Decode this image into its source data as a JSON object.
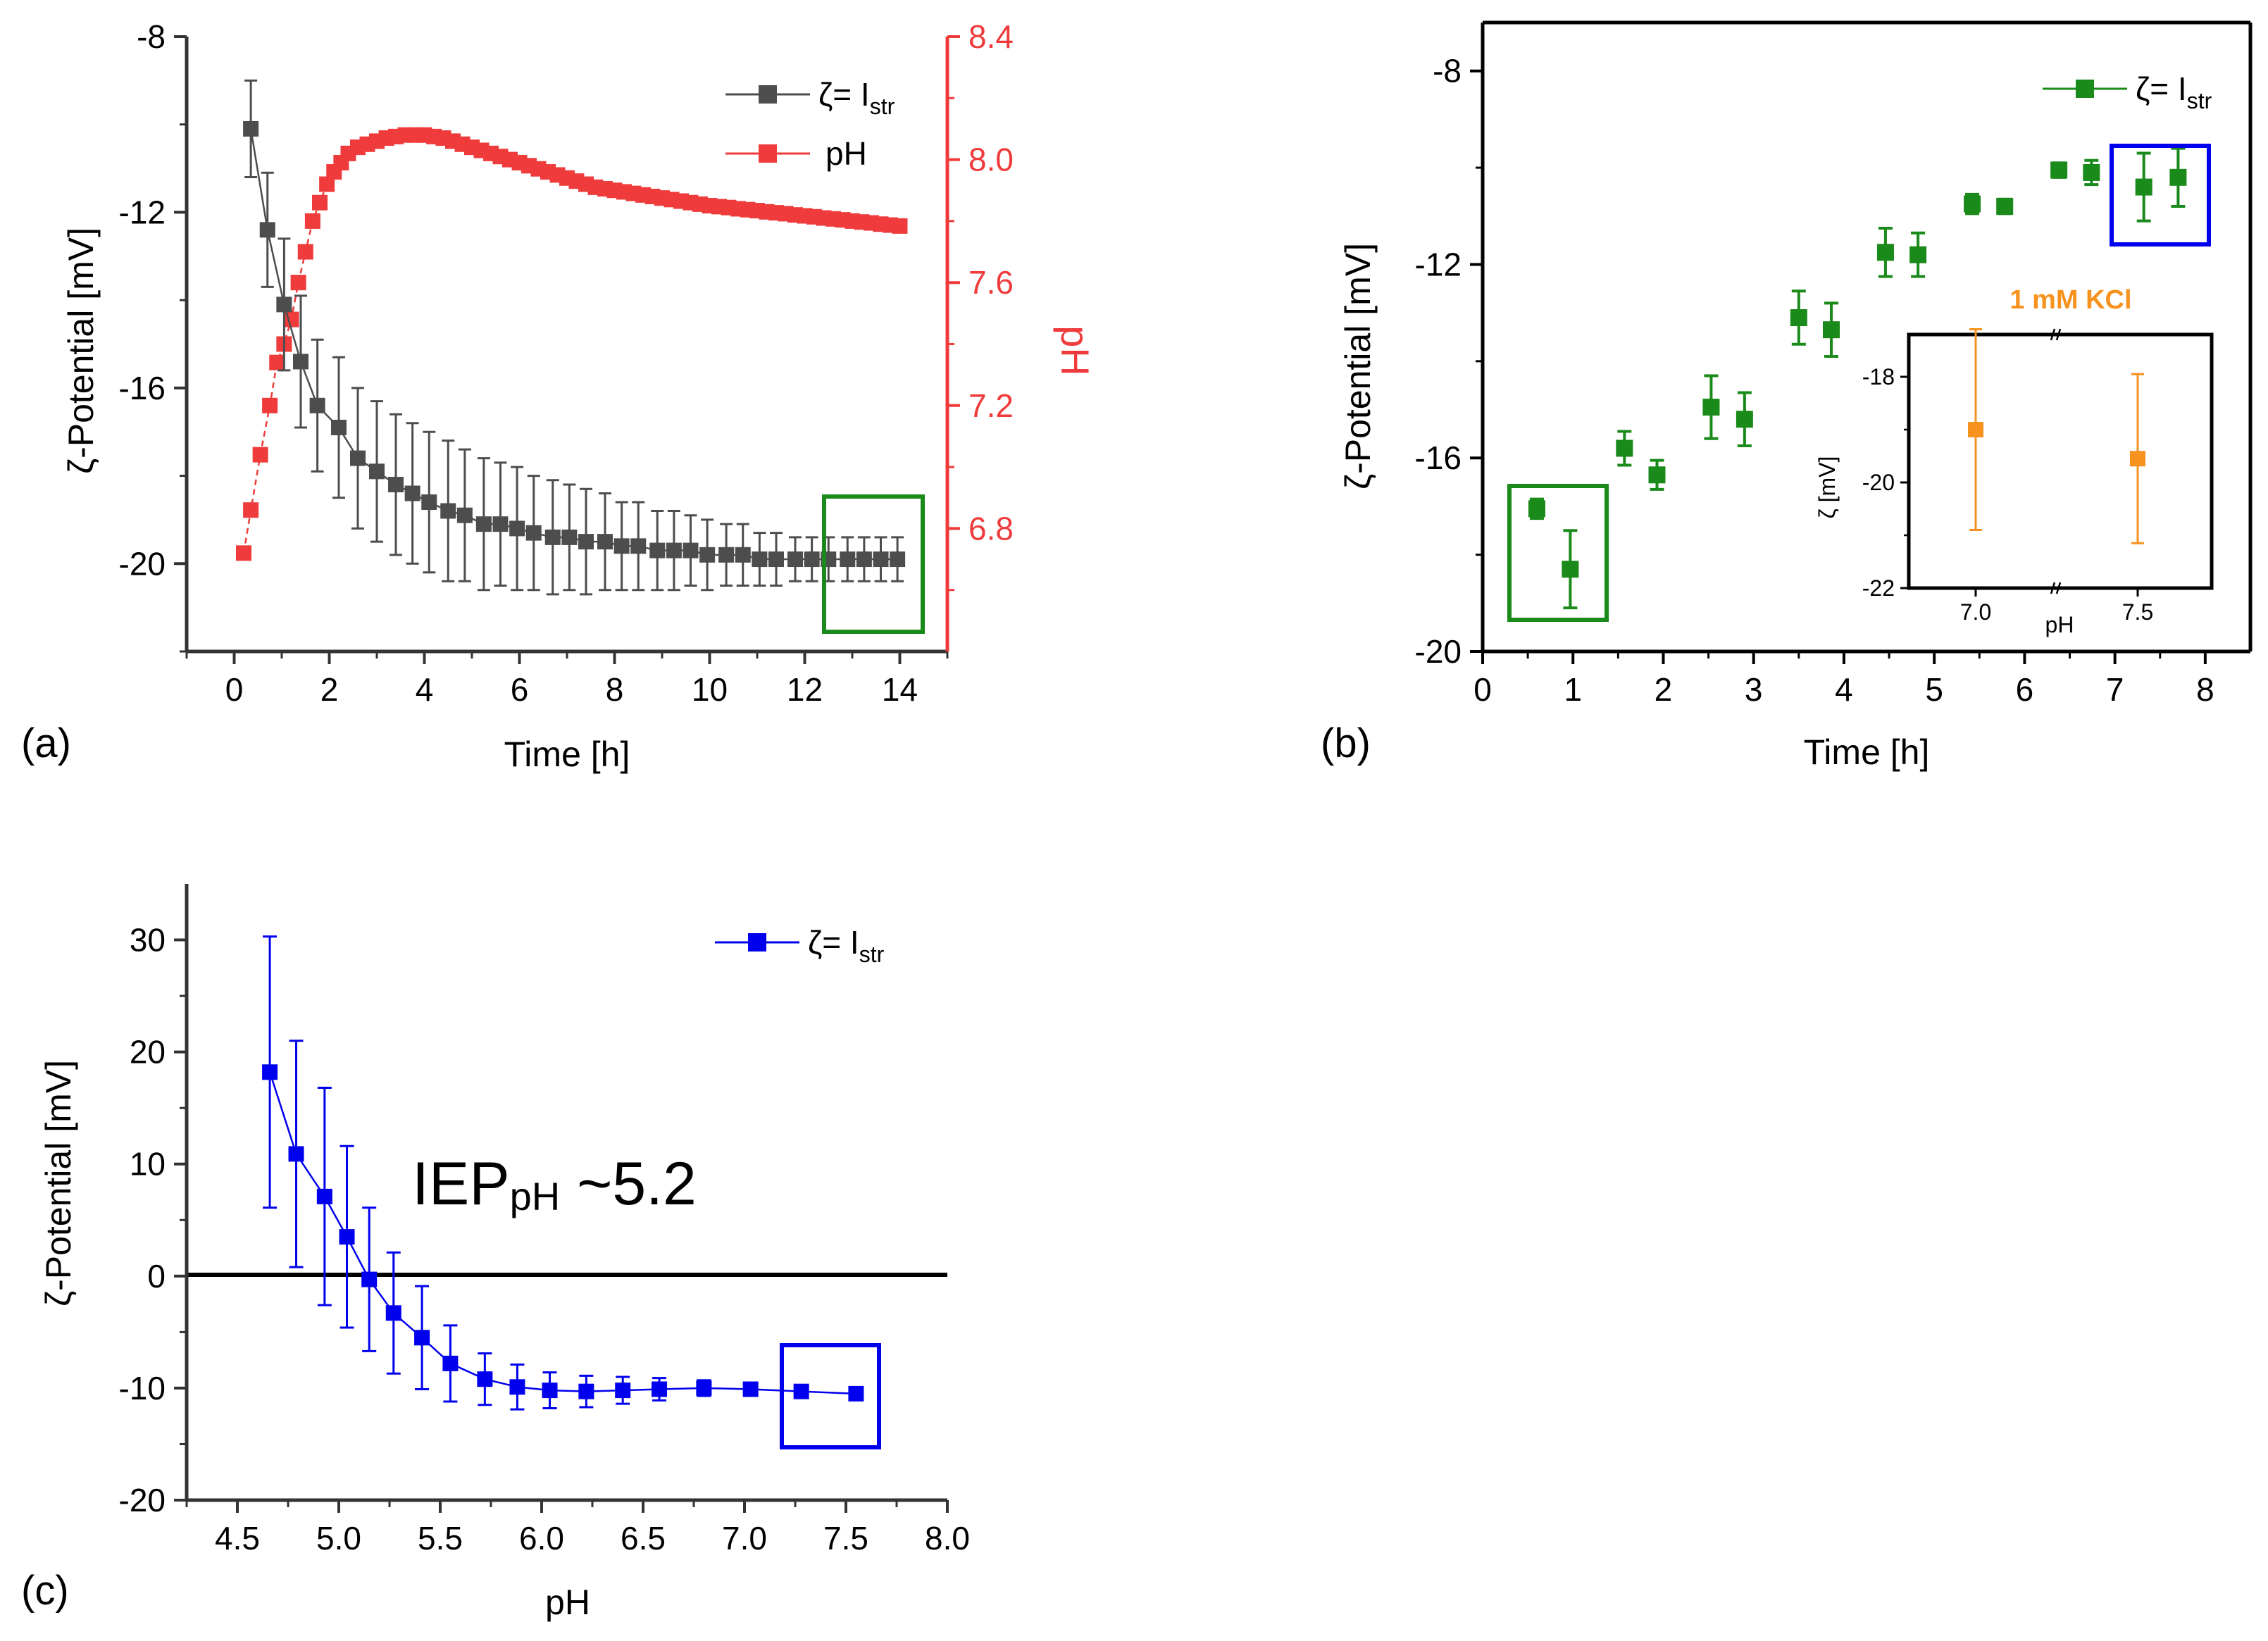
{
  "colors": {
    "axis": "#333333",
    "zeta_gray": "#4d4d4d",
    "ph_red": "#ef3b3b",
    "green": "#1a8a1a",
    "blue": "#0000ee",
    "orange": "#f7921e",
    "zero_line": "#000000"
  },
  "chart_data": [
    {
      "id": "a",
      "type": "scatter",
      "panel_label": "(a)",
      "xlabel": "Time [h]",
      "ylabel": "ζ-Potential [mV]",
      "ylabel_right": "pH",
      "xlim": [
        -1,
        15
      ],
      "ylim": [
        -22,
        -8
      ],
      "ylim_right": [
        6.4,
        8.4
      ],
      "x_ticks": [
        "0",
        "2",
        "4",
        "6",
        "8",
        "10",
        "12",
        "14"
      ],
      "y_ticks": [
        "-8",
        "-12",
        "-16",
        "-20"
      ],
      "y_right_ticks": [
        "8.4",
        "8.0",
        "7.6",
        "7.2",
        "6.8"
      ],
      "legend": [
        {
          "label": "ζ= I",
          "sub": "str",
          "color": "#4d4d4d"
        },
        {
          "label": "pH",
          "sub": "",
          "color": "#ef3b3b"
        }
      ],
      "legend_position": "top-right",
      "series": [
        {
          "name": "ζ= Istr",
          "axis": "left",
          "x": [
            0.35,
            0.7,
            1.05,
            1.4,
            1.75,
            2.2,
            2.6,
            3.0,
            3.4,
            3.75,
            4.1,
            4.5,
            4.85,
            5.25,
            5.6,
            5.95,
            6.3,
            6.7,
            7.05,
            7.4,
            7.8,
            8.15,
            8.5,
            8.9,
            9.25,
            9.6,
            9.95,
            10.35,
            10.7,
            11.05,
            11.4,
            11.8,
            12.15,
            12.5,
            12.9,
            13.25,
            13.6,
            13.95
          ],
          "y": [
            -10.1,
            -12.4,
            -14.1,
            -15.4,
            -16.4,
            -16.9,
            -17.6,
            -17.9,
            -18.2,
            -18.4,
            -18.6,
            -18.8,
            -18.9,
            -19.1,
            -19.1,
            -19.2,
            -19.3,
            -19.4,
            -19.4,
            -19.5,
            -19.5,
            -19.6,
            -19.6,
            -19.7,
            -19.7,
            -19.7,
            -19.8,
            -19.8,
            -19.8,
            -19.9,
            -19.9,
            -19.9,
            -19.9,
            -19.9,
            -19.9,
            -19.9,
            -19.9,
            -19.9
          ],
          "err": [
            1.1,
            1.3,
            1.5,
            1.5,
            1.5,
            1.6,
            1.6,
            1.6,
            1.6,
            1.6,
            1.6,
            1.6,
            1.5,
            1.5,
            1.4,
            1.4,
            1.3,
            1.3,
            1.2,
            1.2,
            1.1,
            1.0,
            1.0,
            0.9,
            0.9,
            0.8,
            0.8,
            0.7,
            0.7,
            0.6,
            0.6,
            0.5,
            0.5,
            0.5,
            0.5,
            0.5,
            0.5,
            0.5
          ]
        },
        {
          "name": "pH",
          "axis": "right",
          "x": [
            0.2,
            0.35,
            0.55,
            0.75,
            0.9,
            1.05,
            1.2,
            1.35,
            1.5,
            1.65,
            1.8,
            1.95,
            2.1,
            2.25,
            2.4,
            2.6,
            2.8,
            3.0,
            3.2,
            3.4,
            3.6,
            3.8,
            4.0,
            4.2,
            4.4,
            4.6,
            4.8,
            5.0,
            5.2,
            5.4,
            5.6,
            5.8,
            6.0,
            6.2,
            6.4,
            6.6,
            6.8,
            7.0,
            7.2,
            7.4,
            7.6,
            7.8,
            8.0,
            8.2,
            8.4,
            8.6,
            8.8,
            9.0,
            9.2,
            9.4,
            9.6,
            9.8,
            10.0,
            10.2,
            10.4,
            10.6,
            10.8,
            11.0,
            11.2,
            11.4,
            11.6,
            11.8,
            12.0,
            12.2,
            12.4,
            12.6,
            12.8,
            13.0,
            13.2,
            13.4,
            13.6,
            13.8,
            14.0
          ],
          "y": [
            6.72,
            6.86,
            7.04,
            7.2,
            7.34,
            7.4,
            7.48,
            7.6,
            7.7,
            7.8,
            7.86,
            7.92,
            7.96,
            7.99,
            8.02,
            8.04,
            8.05,
            8.06,
            8.07,
            8.075,
            8.08,
            8.08,
            8.08,
            8.075,
            8.07,
            8.06,
            8.05,
            8.04,
            8.03,
            8.02,
            8.01,
            8.0,
            7.99,
            7.98,
            7.97,
            7.96,
            7.95,
            7.94,
            7.93,
            7.92,
            7.91,
            7.905,
            7.9,
            7.895,
            7.89,
            7.885,
            7.88,
            7.875,
            7.87,
            7.865,
            7.86,
            7.855,
            7.85,
            7.847,
            7.844,
            7.84,
            7.837,
            7.834,
            7.83,
            7.827,
            7.824,
            7.82,
            7.817,
            7.814,
            7.81,
            7.807,
            7.804,
            7.8,
            7.797,
            7.794,
            7.79,
            7.787,
            7.784
          ]
        }
      ],
      "grid": false
    },
    {
      "id": "b",
      "type": "scatter",
      "panel_label": "(b)",
      "xlabel": "Time [h]",
      "ylabel": "ζ-Potential [mV]",
      "xlim": [
        0,
        8.5
      ],
      "ylim": [
        -20,
        -7
      ],
      "x_ticks": [
        "0",
        "1",
        "2",
        "3",
        "4",
        "5",
        "6",
        "7",
        "8"
      ],
      "y_ticks": [
        "-8",
        "-12",
        "-16",
        "-20"
      ],
      "legend": [
        {
          "label": "ζ= I",
          "sub": "str",
          "color": "#1a8a1a"
        }
      ],
      "legend_position": "top-right",
      "series": [
        {
          "name": "ζ= Istr",
          "x": [
            0.6,
            0.97,
            1.57,
            1.93,
            2.53,
            2.9,
            3.5,
            3.86,
            4.46,
            4.82,
            5.42,
            5.78,
            6.38,
            6.74,
            7.32,
            7.7
          ],
          "y": [
            -17.05,
            -18.3,
            -15.8,
            -16.35,
            -14.95,
            -15.2,
            -13.1,
            -13.35,
            -11.75,
            -11.8,
            -10.75,
            -10.8,
            -10.05,
            -10.1,
            -10.4,
            -10.2
          ],
          "err": [
            0.2,
            0.8,
            0.35,
            0.3,
            0.65,
            0.55,
            0.55,
            0.55,
            0.5,
            0.45,
            0.2,
            0.15,
            0.15,
            0.25,
            0.7,
            0.6
          ]
        }
      ],
      "inset": {
        "title": "1 mM KCl",
        "xlabel": "pH",
        "ylabel": "ζ [mV]",
        "x_ticks": [
          "7.0",
          "7.5"
        ],
        "y_ticks": [
          "-18",
          "-20",
          "-22"
        ],
        "ylim": [
          -22,
          -17.2
        ],
        "points": [
          {
            "x": 7.0,
            "y": -19.0,
            "err": 1.9
          },
          {
            "x": 7.5,
            "y": -19.55,
            "err": 1.6
          }
        ]
      },
      "grid": false
    },
    {
      "id": "c",
      "type": "scatter",
      "panel_label": "(c)",
      "xlabel": "pH",
      "ylabel": "ζ-Potential [mV]",
      "xlim": [
        4.25,
        8.0
      ],
      "ylim": [
        -20,
        35
      ],
      "x_ticks": [
        "4.5",
        "5.0",
        "5.5",
        "6.0",
        "6.5",
        "7.0",
        "7.5",
        "8.0"
      ],
      "y_ticks": [
        "30",
        "20",
        "10",
        "0",
        "-10",
        "-20"
      ],
      "legend": [
        {
          "label": "ζ= I",
          "sub": "str",
          "color": "#0000ee"
        }
      ],
      "legend_position": "top-right",
      "annotation": {
        "main": "IEP",
        "sub": "pH",
        "rest": " ~5.2"
      },
      "series": [
        {
          "name": "ζ= Istr",
          "x": [
            4.66,
            4.79,
            4.93,
            5.04,
            5.15,
            5.27,
            5.41,
            5.55,
            5.72,
            5.88,
            6.04,
            6.22,
            6.4,
            6.58,
            6.8,
            7.03,
            7.28,
            7.55
          ],
          "y": [
            18.2,
            10.9,
            7.1,
            3.5,
            -0.3,
            -3.3,
            -5.5,
            -7.8,
            -9.2,
            -9.9,
            -10.2,
            -10.3,
            -10.2,
            -10.1,
            -10.0,
            -10.1,
            -10.3,
            -10.5
          ],
          "err": [
            12.1,
            10.1,
            9.7,
            8.1,
            6.4,
            5.4,
            4.6,
            3.4,
            2.3,
            2.0,
            1.6,
            1.4,
            1.2,
            1.0,
            0.7,
            0.5,
            0.4,
            0.4
          ]
        }
      ],
      "grid": false
    }
  ]
}
